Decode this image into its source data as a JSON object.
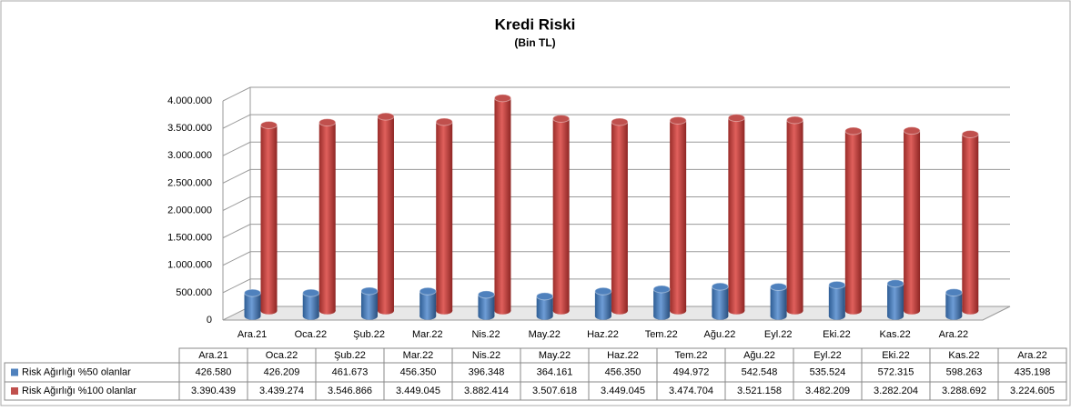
{
  "chart_data": {
    "type": "bar3d",
    "title": "Kredi Riski",
    "subtitle": "(Bin TL)",
    "categories": [
      "Ara.21",
      "Oca.22",
      "Şub.22",
      "Mar.22",
      "Nis.22",
      "May.22",
      "Haz.22",
      "Tem.22",
      "Ağu.22",
      "Eyl.22",
      "Eki.22",
      "Kas.22",
      "Ara.22"
    ],
    "series": [
      {
        "name": "Risk Ağırlığı %50 olanlar",
        "color": "#4f81bd",
        "values": [
          426580,
          426209,
          461673,
          456350,
          396348,
          364161,
          456350,
          494972,
          542548,
          535524,
          572315,
          598263,
          435198
        ],
        "value_labels": [
          "426.580",
          "426.209",
          "461.673",
          "456.350",
          "396.348",
          "364.161",
          "456.350",
          "494.972",
          "542.548",
          "535.524",
          "572.315",
          "598.263",
          "435.198"
        ]
      },
      {
        "name": "Risk Ağırlığı %100 olanlar",
        "color": "#c0504d",
        "values": [
          3390439,
          3439274,
          3546866,
          3449045,
          3882414,
          3507618,
          3449045,
          3474704,
          3521158,
          3482209,
          3282204,
          3288692,
          3224605
        ],
        "value_labels": [
          "3.390.439",
          "3.439.274",
          "3.546.866",
          "3.449.045",
          "3.882.414",
          "3.507.618",
          "3.449.045",
          "3.474.704",
          "3.521.158",
          "3.482.209",
          "3.282.204",
          "3.288.692",
          "3.224.605"
        ]
      }
    ],
    "ylim": [
      0,
      4000000
    ],
    "yticks": [
      0,
      {
        "value": 500000,
        "label": "500.000"
      },
      {
        "value": 1000000,
        "label": "1.000.000"
      },
      {
        "value": 1500000,
        "label": "1.500.000"
      },
      {
        "value": 2000000,
        "label": "2.000.000"
      },
      {
        "value": 2500000,
        "label": "2.500.000"
      },
      {
        "value": 3000000,
        "label": "3.000.000"
      },
      {
        "value": 3500000,
        "label": "3.500.000"
      },
      {
        "value": 4000000,
        "label": "4.000.000"
      }
    ],
    "grid": true
  }
}
